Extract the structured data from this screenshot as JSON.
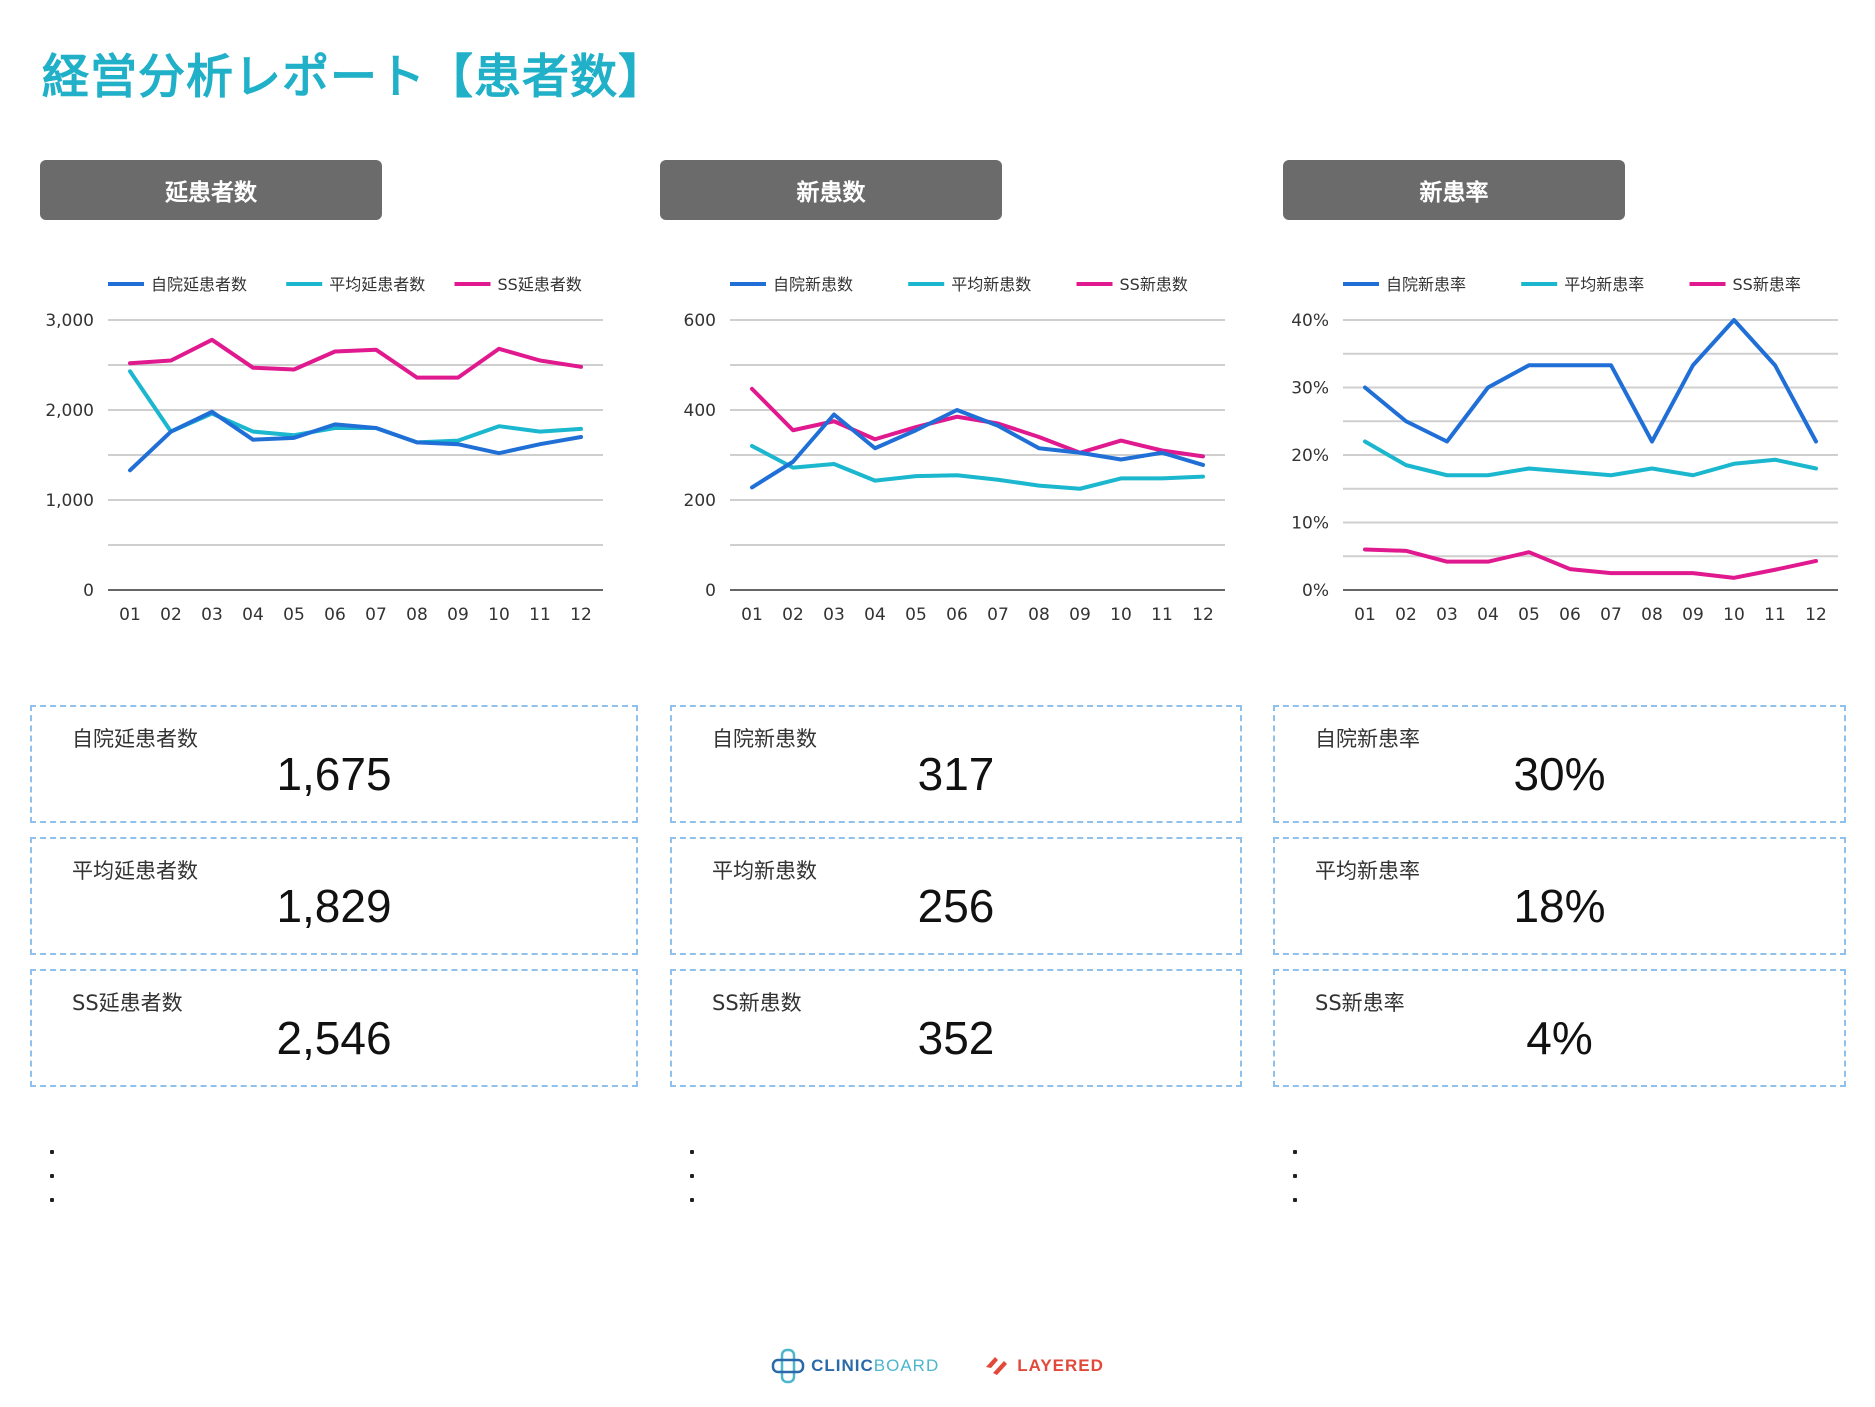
{
  "page": {
    "title": "経営分析レポート【患者数】"
  },
  "sections": [
    {
      "header": "延患者数",
      "chart_data": {
        "type": "line",
        "title": "延患者数",
        "categories": [
          "01",
          "02",
          "03",
          "04",
          "05",
          "06",
          "07",
          "08",
          "09",
          "10",
          "11",
          "12"
        ],
        "ylim": [
          0,
          3000
        ],
        "yticks": [
          0,
          1000,
          2000,
          3000
        ],
        "ytick_labels": [
          "0",
          "1,000",
          "2,000",
          "3,000"
        ],
        "grid": true,
        "legend": "top",
        "series": [
          {
            "name": "自院延患者数",
            "color": "#1f6fd6",
            "values": [
              1330,
              1760,
              1980,
              1670,
              1690,
              1840,
              1800,
              1640,
              1620,
              1520,
              1620,
              1700
            ]
          },
          {
            "name": "平均延患者数",
            "color": "#1bb7cf",
            "values": [
              2430,
              1760,
              1960,
              1760,
              1720,
              1800,
              1800,
              1640,
              1660,
              1820,
              1760,
              1790
            ]
          },
          {
            "name": "SS延患者数",
            "color": "#e0198f",
            "values": [
              2520,
              2550,
              2780,
              2470,
              2450,
              2650,
              2670,
              2360,
              2360,
              2680,
              2550,
              2480
            ]
          }
        ]
      },
      "cards": [
        {
          "label": "自院延患者数",
          "value": "1,675"
        },
        {
          "label": "平均延患者数",
          "value": "1,829"
        },
        {
          "label": "SS延患者数",
          "value": "2,546"
        }
      ]
    },
    {
      "header": "新患数",
      "chart_data": {
        "type": "line",
        "title": "新患数",
        "categories": [
          "01",
          "02",
          "03",
          "04",
          "05",
          "06",
          "07",
          "08",
          "09",
          "10",
          "11",
          "12"
        ],
        "ylim": [
          0,
          600
        ],
        "yticks": [
          0,
          200,
          400,
          600
        ],
        "ytick_labels": [
          "0",
          "200",
          "400",
          "600"
        ],
        "grid": true,
        "legend": "top",
        "series": [
          {
            "name": "自院新患数",
            "color": "#1f6fd6",
            "values": [
              228,
              285,
              390,
              315,
              355,
              400,
              365,
              315,
              305,
              290,
              305,
              278
            ]
          },
          {
            "name": "平均新患数",
            "color": "#1bb7cf",
            "values": [
              320,
              272,
              280,
              243,
              253,
              255,
              245,
              232,
              225,
              248,
              248,
              252
            ]
          },
          {
            "name": "SS新患数",
            "color": "#e0198f",
            "values": [
              447,
              355,
              375,
              335,
              362,
              385,
              370,
              340,
              305,
              332,
              310,
              297
            ]
          }
        ]
      },
      "cards": [
        {
          "label": "自院新患数",
          "value": "317"
        },
        {
          "label": "平均新患数",
          "value": "256"
        },
        {
          "label": "SS新患数",
          "value": "352"
        }
      ]
    },
    {
      "header": "新患率",
      "chart_data": {
        "type": "line",
        "title": "新患率",
        "categories": [
          "01",
          "02",
          "03",
          "04",
          "05",
          "06",
          "07",
          "08",
          "09",
          "10",
          "11",
          "12"
        ],
        "ylim": [
          0,
          40
        ],
        "yticks": [
          0,
          10,
          20,
          30,
          40
        ],
        "ytick_labels": [
          "0%",
          "10%",
          "20%",
          "30%",
          "40%"
        ],
        "grid": true,
        "legend": "top",
        "series": [
          {
            "name": "自院新患率",
            "color": "#1f6fd6",
            "values": [
              30,
              25,
              22,
              30,
              33.3,
              33.3,
              33.3,
              22,
              33.3,
              40,
              33.3,
              22
            ]
          },
          {
            "name": "平均新患率",
            "color": "#1bb7cf",
            "values": [
              22,
              18.5,
              17,
              17,
              18,
              17.5,
              17,
              18,
              17,
              18.7,
              19.3,
              18
            ]
          },
          {
            "name": "SS新患率",
            "color": "#e0198f",
            "values": [
              6,
              5.8,
              4.2,
              4.2,
              5.6,
              3.1,
              2.5,
              2.5,
              2.5,
              1.8,
              3,
              4.3
            ]
          }
        ]
      },
      "cards": [
        {
          "label": "自院新患率",
          "value": "30%"
        },
        {
          "label": "平均新患率",
          "value": "18%"
        },
        {
          "label": "SS新患率",
          "value": "4%"
        }
      ]
    }
  ],
  "footer": {
    "logo1": {
      "strong": "CLINIC",
      "light": "BOARD"
    },
    "logo2": "LAYERED"
  }
}
